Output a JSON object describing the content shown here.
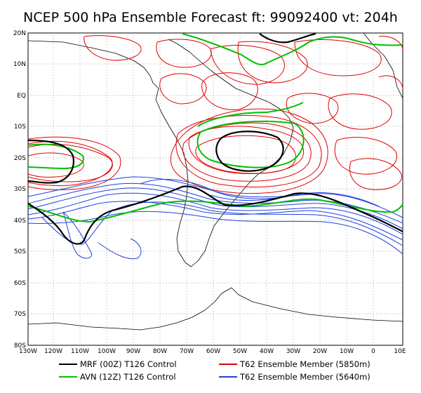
{
  "title": "NCEP 500 hPa Ensemble Forecast  ft: 99092400 vt: 204h",
  "axes": {
    "lat_labels": [
      "20N",
      "10N",
      "EQ",
      "10S",
      "20S",
      "30S",
      "40S",
      "50S",
      "60S",
      "70S",
      "80S"
    ],
    "lon_labels": [
      "130W",
      "120W",
      "110W",
      "100W",
      "90W",
      "80W",
      "70W",
      "60W",
      "50W",
      "40W",
      "30W",
      "20W",
      "10W",
      "0",
      "10E"
    ]
  },
  "legend": [
    {
      "label": "MRF (00Z) T126 Control",
      "color": "#000000"
    },
    {
      "label": "AVN (12Z) T126 Control",
      "color": "#00c000"
    },
    {
      "label": "T62 Ensemble Member (5850m)",
      "color": "#e00000"
    },
    {
      "label": "T62 Ensemble Member (5640m)",
      "color": "#2040e0"
    }
  ],
  "colors": {
    "mrf": "#000000",
    "avn": "#00c000",
    "ens5850": "#e00000",
    "ens5640": "#2040e0",
    "grid": "#888888",
    "coast": "#000000"
  }
}
